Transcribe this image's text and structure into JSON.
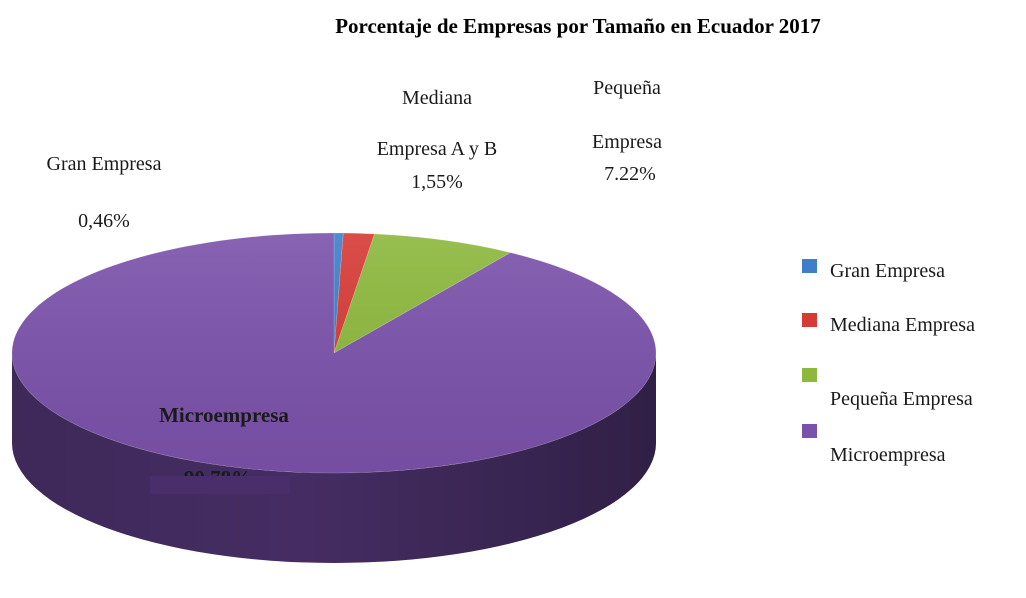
{
  "chart_data": {
    "type": "pie",
    "title": "Porcentaje de Empresas por Tamaño en Ecuador 2017",
    "three_d": true,
    "categories": [
      "Gran Empresa",
      "Mediana Empresa",
      "Pequeña Empresa",
      "Microempresa"
    ],
    "values": [
      0.46,
      1.55,
      7.22,
      90.78
    ],
    "colors": [
      "#3f7ec9",
      "#d63a35",
      "#8cb83c",
      "#7b52ab"
    ],
    "side_colors": [
      "#2c5a90",
      "#982825",
      "#63842a",
      "#452d63"
    ],
    "data_labels": [
      {
        "name_lines": [
          "Gran Empresa"
        ],
        "value": "0,46%"
      },
      {
        "name_lines": [
          "Mediana",
          "Empresa A y B"
        ],
        "value": "1,55%"
      },
      {
        "name_lines": [
          "Pequeña",
          "Empresa"
        ],
        "value": "7.22%"
      },
      {
        "name_lines": [
          "Microempresa"
        ],
        "value": "90,78%"
      }
    ],
    "legend": {
      "position": "right",
      "entries": [
        "Gran Empresa",
        "Mediana Empresa",
        "Pequeña Empresa",
        "Microempresa"
      ]
    }
  }
}
